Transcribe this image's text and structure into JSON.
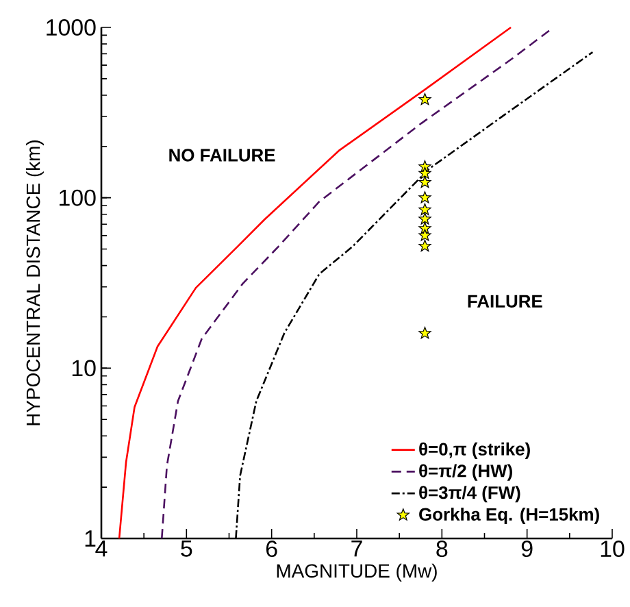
{
  "chart_data": {
    "type": "line",
    "xlabel": "MAGNITUDE (Mw)",
    "ylabel": "HYPOCENTRAL DISTANCE (km)",
    "log": "y",
    "xlim": [
      4,
      10
    ],
    "ylim": [
      1,
      1000
    ],
    "xticks": [
      4,
      5,
      6,
      7,
      8,
      9,
      10
    ],
    "yticks": [
      1,
      10,
      100,
      1000
    ],
    "grid": false,
    "legend": "bottom right",
    "marker": "none",
    "annotations": [
      "NO FAILURE",
      "FAILURE"
    ],
    "series": [
      {
        "name": "θ=0,π (strike)",
        "color": "#ff0000",
        "line_style": "solid",
        "x": [
          4.21,
          4.29,
          4.39,
          4.66,
          5.11,
          5.6,
          5.92,
          6.79,
          7.81,
          8.81
        ],
        "values": [
          1,
          2.8,
          5.9,
          13.4,
          29.6,
          51.7,
          74.8,
          189,
          435,
          1000
        ]
      },
      {
        "name": "θ=π/2 (HW)",
        "color": "#4b1060",
        "line_style": "dashed",
        "x": [
          4.71,
          4.77,
          4.9,
          5.18,
          5.66,
          6.08,
          6.56,
          7.76,
          8.82,
          9.31
        ],
        "values": [
          1,
          2.67,
          6.4,
          14.9,
          31.3,
          51.7,
          95,
          274,
          653,
          1000
        ]
      },
      {
        "name": "θ=3π/4 (FW)",
        "color": "#000000",
        "line_style": "dashdot",
        "x": [
          5.58,
          5.63,
          5.82,
          6.15,
          6.56,
          6.95,
          7.85,
          8.82,
          9.77
        ],
        "values": [
          1,
          2.34,
          6.4,
          16.1,
          35.7,
          51.7,
          148,
          329,
          716
        ]
      },
      {
        "name": "Gorkha Eq. (H=15km)",
        "type": "scatter",
        "marker": "star",
        "color": "#ffff00",
        "x": [
          7.8,
          7.8,
          7.8,
          7.8,
          7.8,
          7.8,
          7.8,
          7.8,
          7.8,
          7.8,
          7.8
        ],
        "values": [
          377,
          152,
          139,
          123,
          100,
          85,
          75,
          66,
          60,
          52,
          16
        ]
      }
    ]
  }
}
